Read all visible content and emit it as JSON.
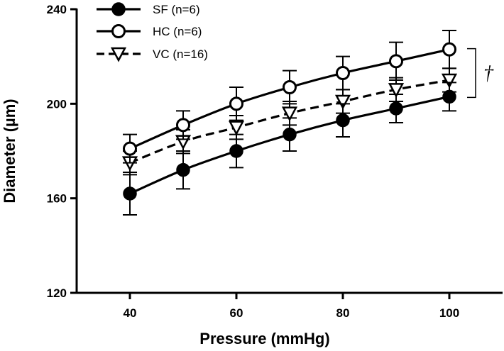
{
  "chart_data": {
    "type": "line",
    "xlabel": "Pressure (mmHg)",
    "ylabel": "Diameter (µm)",
    "xlim": [
      30,
      110
    ],
    "ylim": [
      120,
      240
    ],
    "xticks": [
      40,
      60,
      80,
      100
    ],
    "yticks": [
      120,
      160,
      200,
      240
    ],
    "x": [
      40,
      50,
      60,
      70,
      80,
      90,
      100
    ],
    "series": [
      {
        "name": "SF (n=6)",
        "marker": "filled-circle",
        "line": "solid",
        "values": [
          162,
          172,
          180,
          187,
          193,
          198,
          203
        ],
        "errors": [
          9,
          8,
          7,
          7,
          7,
          6,
          6
        ]
      },
      {
        "name": "HC (n=6)",
        "marker": "open-circle",
        "line": "solid",
        "values": [
          181,
          191,
          200,
          207,
          213,
          218,
          223
        ],
        "errors": [
          6,
          6,
          7,
          7,
          7,
          8,
          8
        ]
      },
      {
        "name": "VC (n=16)",
        "marker": "open-triangle-down",
        "line": "dashed",
        "values": [
          175,
          184,
          190,
          196,
          201,
          206,
          210
        ],
        "errors": [
          5,
          5,
          5,
          5,
          5,
          5,
          5
        ]
      }
    ],
    "legend_position": "top-left",
    "annotation": {
      "text": "†",
      "spans": "between HC and SF at 100 mmHg"
    },
    "grid": false
  }
}
